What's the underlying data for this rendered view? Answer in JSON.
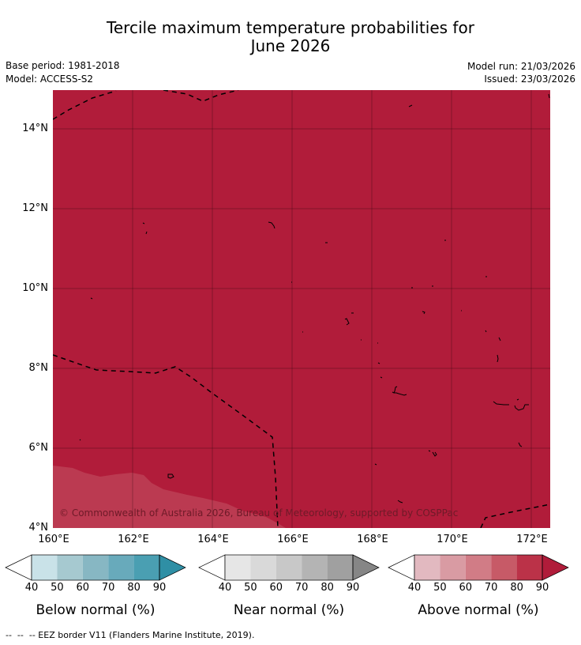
{
  "title_line1": "Tercile maximum temperature probabilities for",
  "title_line2": "June 2026",
  "base_period": "Base period: 1981-2018",
  "model": "Model: ACCESS-S2",
  "model_run": "Model run: 21/03/2026",
  "issued": "Issued: 23/03/2026",
  "copyright": "© Commonwealth of Australia 2026, Bureau of Meteorology, supported by COSPPac",
  "x_ticks": [
    "160°E",
    "162°E",
    "164°E",
    "166°E",
    "168°E",
    "170°E",
    "172°E"
  ],
  "y_ticks": [
    "14°N",
    "12°N",
    "10°N",
    "8°N",
    "6°N",
    "4°N"
  ],
  "colorbars": [
    {
      "title": "Below normal (%)",
      "labels": [
        "40",
        "50",
        "60",
        "70",
        "80",
        "90"
      ],
      "colors": [
        "#ffffff",
        "#c9e2e8",
        "#a6c9d0",
        "#87b7c3",
        "#68aabb",
        "#4a9fb2",
        "#2f8fa5"
      ]
    },
    {
      "title": "Near normal (%)",
      "labels": [
        "40",
        "50",
        "60",
        "70",
        "80",
        "90"
      ],
      "colors": [
        "#ffffff",
        "#e6e6e6",
        "#d9d9d9",
        "#c8c8c8",
        "#b4b4b4",
        "#a0a0a0",
        "#868686"
      ]
    },
    {
      "title": "Above normal (%)",
      "labels": [
        "40",
        "50",
        "60",
        "70",
        "80",
        "90"
      ],
      "colors": [
        "#ffffff",
        "#e2b9c0",
        "#d99ba3",
        "#d17c86",
        "#c75a67",
        "#bb3248",
        "#b01c3a"
      ]
    }
  ],
  "map_colors": {
    "dominant": "#b11c3a",
    "lighter": "#bb3a51",
    "outline": "#000000"
  },
  "footnote": "--  --  -- EEZ border V11 (Flanders Marine Institute, 2019)."
}
